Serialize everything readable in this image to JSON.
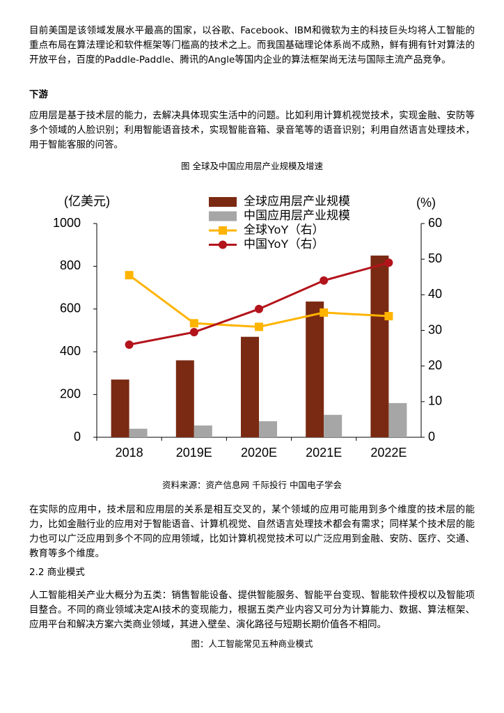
{
  "paragraph_1": "目前美国是该领域发展水平最高的国家，以谷歌、Facebook、IBM和微软为主的科技巨头均将人工智能的重点布局在算法理论和软件框架等门槛高的技术之上。而我国基础理论体系尚不成熟，鲜有拥有针对算法的开放平台，百度的Paddle-Paddle、腾讯的Angle等国内企业的算法框架尚无法与国际主流产品竞争。",
  "heading_1": "下游",
  "paragraph_2": "应用层是基于技术层的能力，去解决具体现实生活中的问题。比如利用计算机视觉技术，实现金融、安防等多个领域的人脸识别；利用智能语音技术，实现智能音箱、录音笔等的语音识别；利用自然语言处理技术，用于智能客服的问答。",
  "figure_caption_1": "图 全球及中国应用层产业规模及增速",
  "chart_data": {
    "type": "combo",
    "y_label": "(亿美元)",
    "y2_label": "(%)",
    "categories": [
      "2018",
      "2019E",
      "2020E",
      "2021E",
      "2022E"
    ],
    "ylim": [
      0,
      1000
    ],
    "yticks": [
      0,
      200,
      400,
      600,
      800,
      1000
    ],
    "y2lim": [
      0,
      60
    ],
    "y2ticks": [
      0,
      10,
      20,
      30,
      40,
      50,
      60
    ],
    "series": [
      {
        "name": "全球应用层产业规模",
        "type": "bar",
        "color": "#7a2a12",
        "values": [
          270,
          360,
          470,
          635,
          850
        ]
      },
      {
        "name": "中国应用层产业规模",
        "type": "bar",
        "color": "#a6a6a6",
        "values": [
          40,
          55,
          75,
          105,
          160
        ]
      },
      {
        "name": "全球YoY（右）",
        "type": "line",
        "marker": "square",
        "axis": "y2",
        "color": "#ffb400",
        "values": [
          45.5,
          32,
          31,
          35,
          34
        ]
      },
      {
        "name": "中国YoY（右）",
        "type": "line",
        "marker": "circle",
        "axis": "y2",
        "color": "#b3131b",
        "values": [
          26,
          29.5,
          36,
          44,
          49
        ]
      }
    ]
  },
  "figure_source_1": "资料来源：资产信息网 千际投行 中国电子学会",
  "paragraph_3": "在实际的应用中，技术层和应用层的关系是相互交叉的，某个领域的应用可能用到多个维度的技术层的能力，比如金融行业的应用对于智能语音、计算机视觉、自然语言处理技术都会有需求；同样某个技术层的能力也可以广泛应用到多个不同的应用领域，比如计算机视觉技术可以广泛应用到金融、安防、医疗、交通、教育等多个维度。",
  "heading_2": "2.2 商业模式",
  "paragraph_4": "人工智能相关产业大概分为五类：销售智能设备、提供智能服务、智能平台变现、智能软件授权以及智能项目整合。不同的商业领域决定AI技术的变现能力，根据五类产业内容又可分为计算能力、数据、算法框架、应用平台和解决方案六类商业领域，其进入壁垒、演化路径与短期长期价值各不相同。",
  "figure_caption_2": "图：人工智能常见五种商业模式"
}
